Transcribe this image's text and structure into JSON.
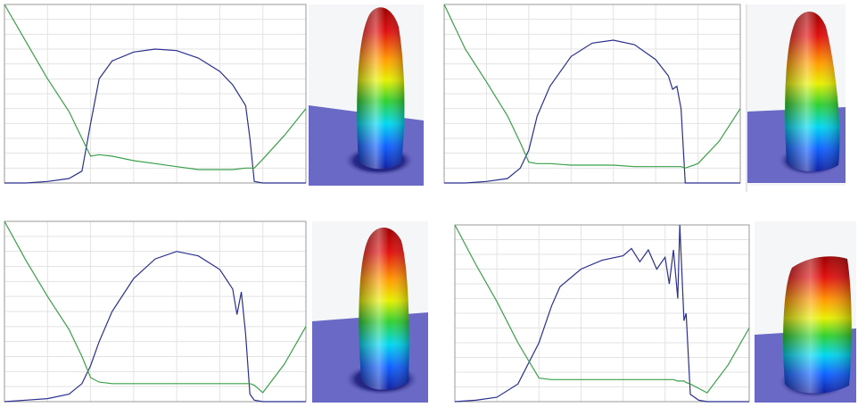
{
  "chart_data": [
    {
      "type": "line",
      "xlim": [
        0,
        7
      ],
      "ylim": [
        0,
        12
      ],
      "xticks": [
        0,
        1,
        2,
        3,
        4,
        5,
        6,
        7
      ],
      "yticks": [
        0,
        1,
        2,
        3,
        4,
        5,
        6,
        7,
        8,
        9,
        10,
        11,
        12
      ],
      "grid": true,
      "x": [
        0,
        0.5,
        1,
        1.5,
        1.8,
        2,
        2.2,
        2.5,
        3,
        3.5,
        4,
        4.5,
        5,
        5.3,
        5.6,
        5.7,
        5.8,
        6,
        6.5,
        7
      ],
      "series": [
        {
          "color": "#2b2f8f",
          "values": [
            0,
            0,
            0.1,
            0.3,
            0.8,
            4,
            7,
            8.2,
            8.8,
            9,
            8.9,
            8.4,
            7.5,
            6.6,
            5.2,
            3,
            0.1,
            0,
            0,
            0
          ]
        },
        {
          "color": "#3aa04a",
          "values": [
            12,
            9.5,
            7,
            4.8,
            3,
            1.8,
            1.9,
            1.8,
            1.5,
            1.3,
            1.1,
            0.9,
            0.9,
            0.9,
            1,
            1,
            1,
            1.6,
            3.2,
            5
          ]
        }
      ]
    },
    {
      "type": "line",
      "xlim": [
        0,
        7
      ],
      "ylim": [
        0,
        12
      ],
      "xticks": [
        0,
        1,
        2,
        3,
        4,
        5,
        6,
        7
      ],
      "yticks": [
        0,
        1,
        2,
        3,
        4,
        5,
        6,
        7,
        8,
        9,
        10,
        11,
        12
      ],
      "grid": true,
      "x": [
        0,
        0.5,
        1,
        1.5,
        1.8,
        2,
        2.2,
        2.5,
        3,
        3.5,
        4,
        4.5,
        5,
        5.3,
        5.4,
        5.5,
        5.6,
        5.7,
        6,
        6.5,
        7
      ],
      "series": [
        {
          "color": "#2b2f8f",
          "values": [
            0,
            0,
            0.1,
            0.3,
            1,
            2.2,
            4.5,
            6.5,
            8.5,
            9.4,
            9.6,
            9.3,
            8.3,
            7.2,
            6.3,
            6.5,
            5,
            0,
            0,
            0,
            0
          ]
        },
        {
          "color": "#3aa04a",
          "values": [
            12,
            9,
            6.8,
            4.5,
            2.7,
            1.4,
            1.3,
            1.3,
            1.2,
            1.2,
            1.2,
            1.1,
            1.1,
            1.1,
            1.1,
            1.1,
            1.1,
            1.0,
            1.3,
            2.8,
            5
          ]
        }
      ]
    },
    {
      "type": "line",
      "xlim": [
        0,
        7
      ],
      "ylim": [
        0,
        12
      ],
      "xticks": [
        0,
        1,
        2,
        3,
        4,
        5,
        6,
        7
      ],
      "yticks": [
        0,
        1,
        2,
        3,
        4,
        5,
        6,
        7,
        8,
        9,
        10,
        11,
        12
      ],
      "grid": true,
      "x": [
        0,
        0.5,
        1,
        1.5,
        1.8,
        2,
        2.2,
        2.5,
        3,
        3.5,
        4,
        4.5,
        5,
        5.3,
        5.4,
        5.5,
        5.6,
        5.7,
        5.8,
        6,
        6.5,
        7
      ],
      "series": [
        {
          "color": "#2b2f8f",
          "values": [
            0,
            0.1,
            0.2,
            0.5,
            1.2,
            2.4,
            4,
            6,
            8.2,
            9.5,
            10,
            9.7,
            8.8,
            7.5,
            5.8,
            7.3,
            4.5,
            0.5,
            0.1,
            0,
            0,
            0
          ]
        },
        {
          "color": "#3aa04a",
          "values": [
            12,
            9.4,
            7,
            4.8,
            3,
            1.6,
            1.3,
            1.2,
            1.2,
            1.2,
            1.2,
            1.2,
            1.2,
            1.2,
            1.2,
            1.2,
            1.2,
            1.2,
            1.1,
            0.6,
            2.5,
            5
          ]
        }
      ]
    },
    {
      "type": "line",
      "xlim": [
        0,
        7
      ],
      "ylim": [
        0,
        12
      ],
      "xticks": [
        0,
        1,
        2,
        3,
        4,
        5,
        6,
        7
      ],
      "yticks": [
        0,
        1,
        2,
        3,
        4,
        5,
        6,
        7,
        8,
        9,
        10,
        11,
        12
      ],
      "grid": true,
      "x": [
        0,
        0.5,
        1,
        1.5,
        2,
        2.3,
        2.5,
        3,
        3.5,
        4,
        4.2,
        4.4,
        4.6,
        4.8,
        5,
        5.1,
        5.2,
        5.3,
        5.35,
        5.45,
        5.5,
        5.6,
        5.8,
        6,
        6.5,
        7
      ],
      "series": [
        {
          "color": "#2b2f8f",
          "values": [
            0,
            0.1,
            0.3,
            1.2,
            4,
            6.5,
            7.8,
            9,
            9.6,
            9.9,
            10.4,
            9.5,
            10.3,
            9,
            9.8,
            8,
            10.3,
            7,
            12,
            5.5,
            6,
            0.5,
            0.1,
            0,
            0,
            0
          ]
        },
        {
          "color": "#3aa04a",
          "values": [
            12,
            9.3,
            6.8,
            4,
            1.6,
            1.5,
            1.5,
            1.5,
            1.5,
            1.5,
            1.5,
            1.5,
            1.5,
            1.5,
            1.5,
            1.5,
            1.5,
            1.4,
            1.4,
            1.4,
            1.3,
            1.2,
            0.9,
            0.6,
            2.5,
            5
          ]
        }
      ]
    }
  ]
}
